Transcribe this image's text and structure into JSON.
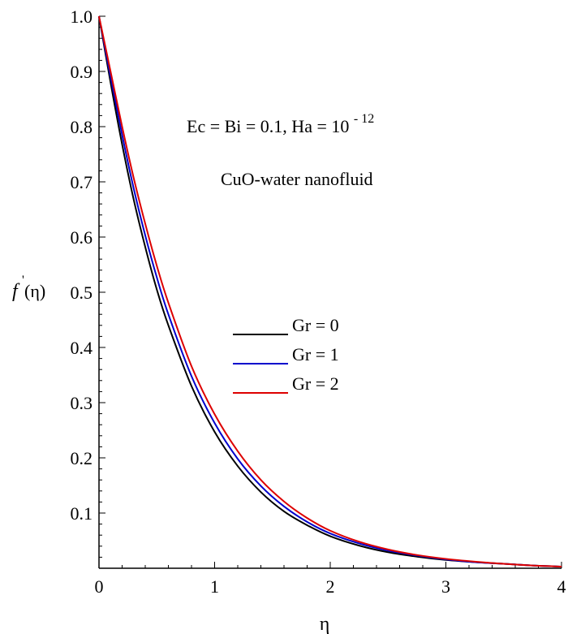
{
  "chart_data": {
    "type": "line",
    "title": "",
    "xlabel": "η",
    "ylabel_prime": "'",
    "ylabel_f": "f",
    "ylabel_arg": "(η)",
    "xlim": [
      0,
      4
    ],
    "ylim": [
      0,
      1.0
    ],
    "x_ticks": [
      {
        "value": 0,
        "label": "0"
      },
      {
        "value": 1,
        "label": "1"
      },
      {
        "value": 2,
        "label": "2"
      },
      {
        "value": 3,
        "label": "3"
      },
      {
        "value": 4,
        "label": "4"
      }
    ],
    "y_ticks": [
      {
        "value": 0.1,
        "label": "0.1"
      },
      {
        "value": 0.2,
        "label": "0.2"
      },
      {
        "value": 0.3,
        "label": "0.3"
      },
      {
        "value": 0.4,
        "label": "0.4"
      },
      {
        "value": 0.5,
        "label": "0.5"
      },
      {
        "value": 0.6,
        "label": "0.6"
      },
      {
        "value": 0.7,
        "label": "0.7"
      },
      {
        "value": 0.8,
        "label": "0.8"
      },
      {
        "value": 0.9,
        "label": "0.9"
      },
      {
        "value": 1.0,
        "label": "1.0"
      }
    ],
    "grid": false,
    "legend_position": "center-right",
    "annotations": {
      "params_main": "Ec = Bi  = 0.1, Ha = 10",
      "params_exp": "- 12",
      "fluid": "CuO-water nanofluid"
    },
    "series": [
      {
        "name": "Gr = 0",
        "color": "#000000",
        "x": [
          0,
          0.1,
          0.2,
          0.3,
          0.4,
          0.5,
          0.6,
          0.8,
          1.0,
          1.2,
          1.4,
          1.6,
          1.8,
          2.0,
          2.25,
          2.5,
          2.75,
          3.0,
          3.25,
          3.5,
          3.75,
          4.0
        ],
        "y": [
          1.0,
          0.88,
          0.768,
          0.668,
          0.582,
          0.505,
          0.44,
          0.33,
          0.247,
          0.185,
          0.138,
          0.103,
          0.078,
          0.058,
          0.041,
          0.029,
          0.021,
          0.015,
          0.011,
          0.008,
          0.005,
          0.003
        ]
      },
      {
        "name": "Gr = 1",
        "color": "#0000cc",
        "x": [
          0,
          0.1,
          0.2,
          0.3,
          0.4,
          0.5,
          0.6,
          0.8,
          1.0,
          1.2,
          1.4,
          1.6,
          1.8,
          2.0,
          2.25,
          2.5,
          2.75,
          3.0,
          3.25,
          3.5,
          3.75,
          4.0
        ],
        "y": [
          1.0,
          0.89,
          0.785,
          0.688,
          0.603,
          0.527,
          0.46,
          0.348,
          0.263,
          0.198,
          0.149,
          0.112,
          0.084,
          0.063,
          0.045,
          0.032,
          0.023,
          0.016,
          0.011,
          0.008,
          0.005,
          0.003
        ]
      },
      {
        "name": "Gr = 2",
        "color": "#dd0000",
        "x": [
          0,
          0.1,
          0.2,
          0.3,
          0.4,
          0.5,
          0.6,
          0.8,
          1.0,
          1.2,
          1.4,
          1.6,
          1.8,
          2.0,
          2.25,
          2.5,
          2.75,
          3.0,
          3.25,
          3.5,
          3.75,
          4.0
        ],
        "y": [
          1.0,
          0.9,
          0.8,
          0.707,
          0.624,
          0.548,
          0.481,
          0.366,
          0.279,
          0.212,
          0.16,
          0.121,
          0.091,
          0.068,
          0.048,
          0.034,
          0.024,
          0.017,
          0.012,
          0.008,
          0.005,
          0.003
        ]
      }
    ]
  }
}
